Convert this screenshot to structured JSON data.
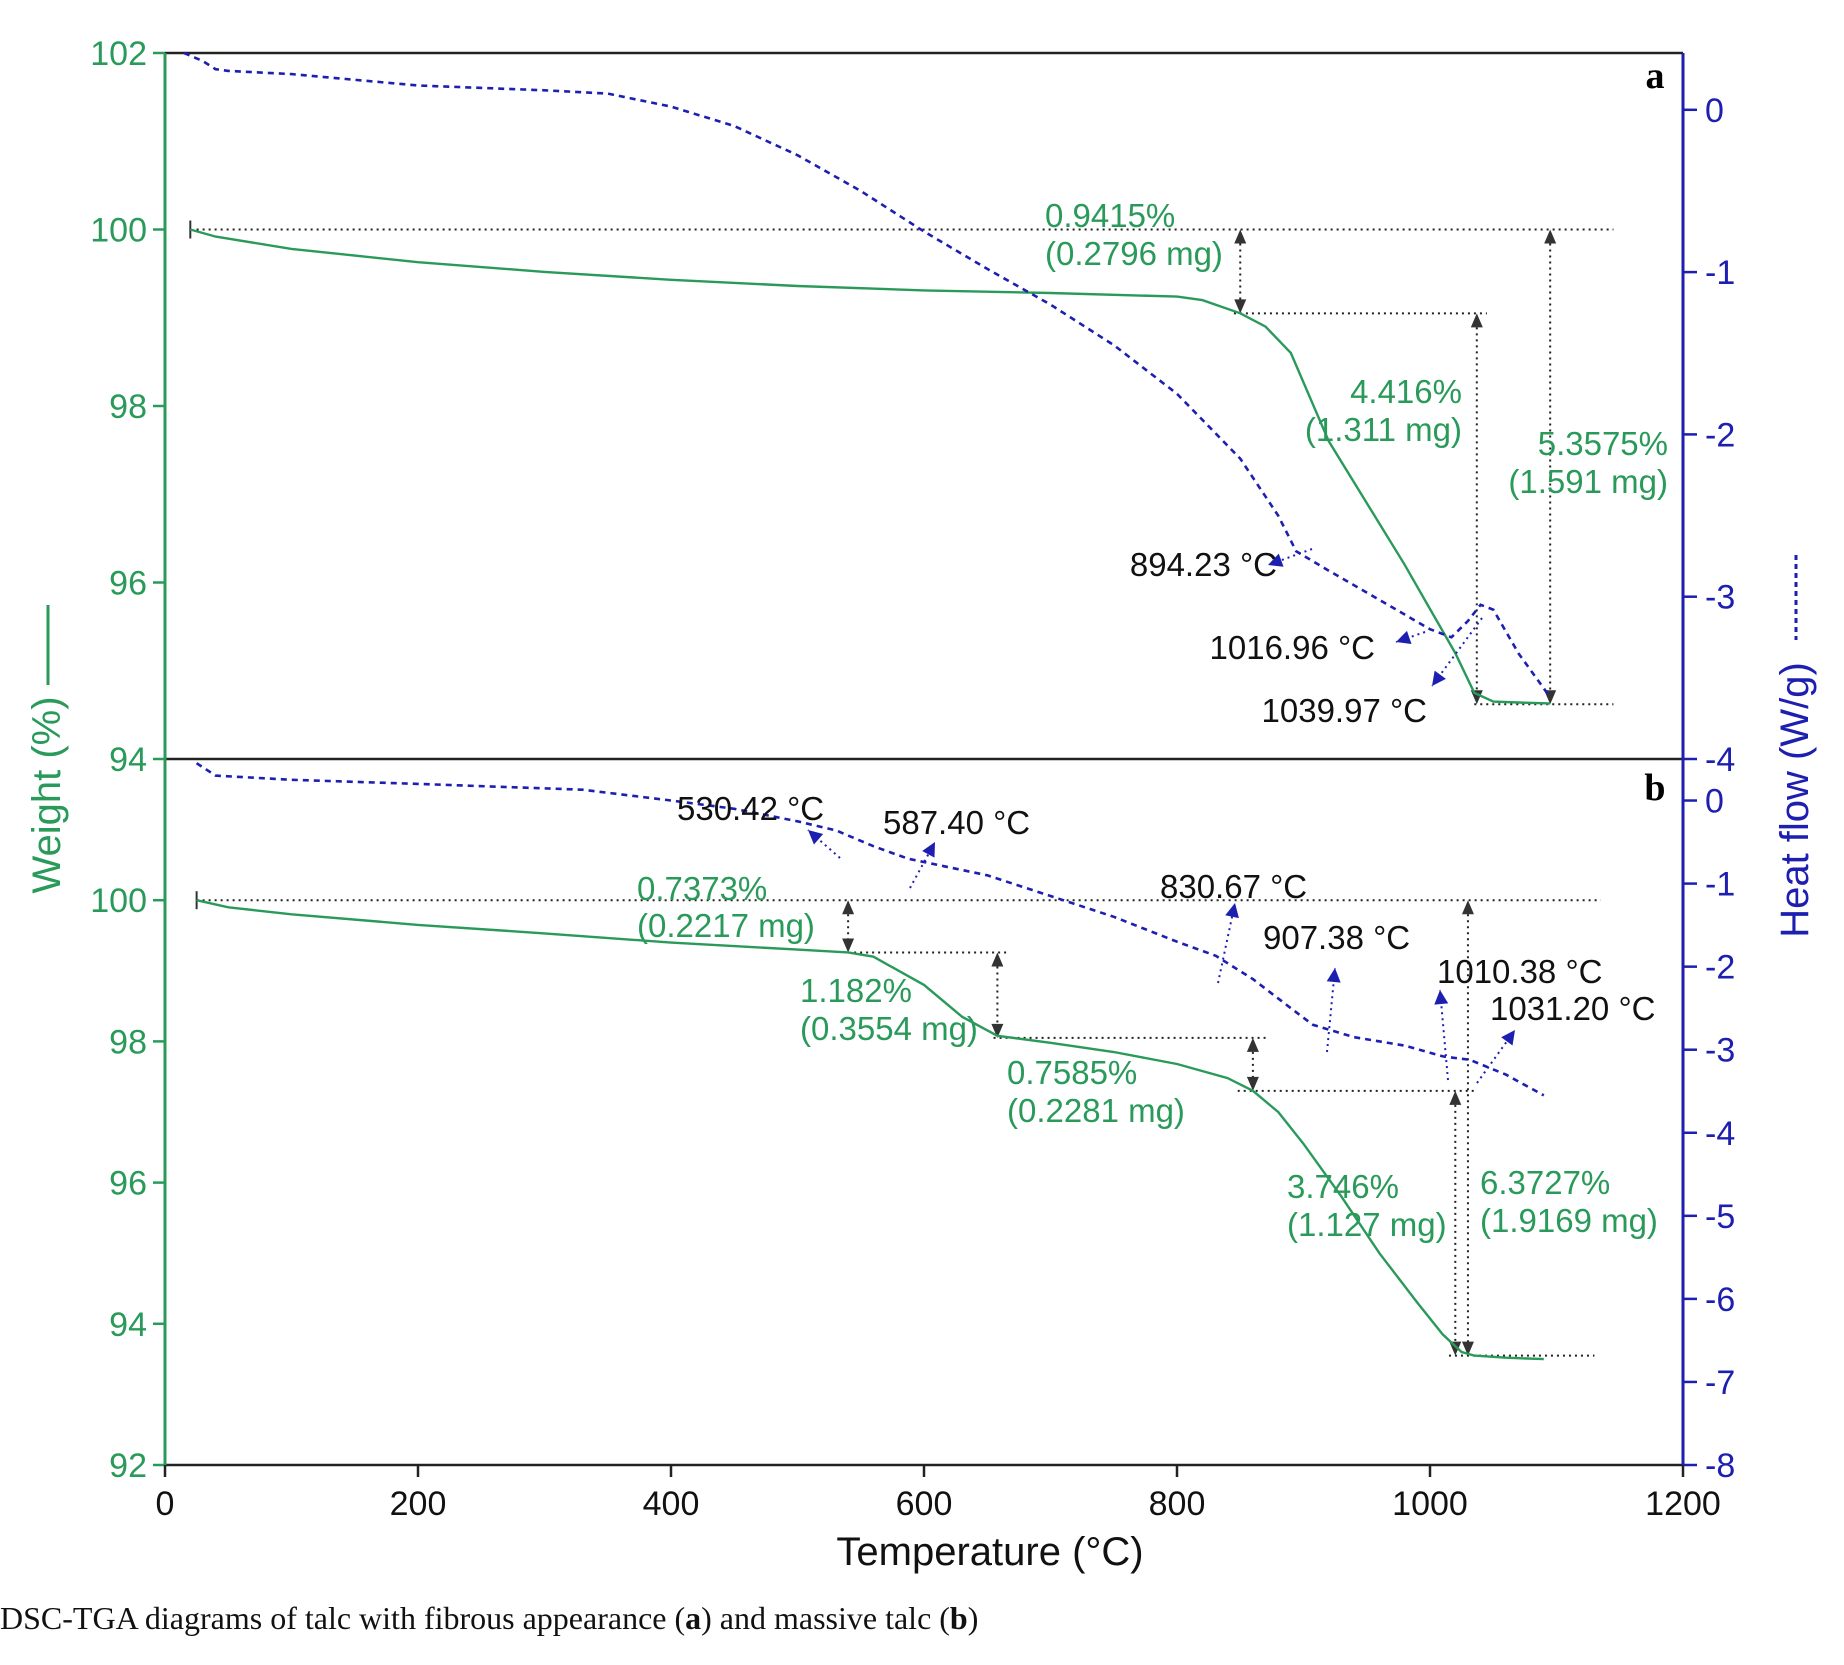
{
  "chart_data": [
    {
      "type": "line",
      "panel_label": "a",
      "x": {
        "label": "Temperature (°C)",
        "ticks": [
          "0",
          "200",
          "400",
          "600",
          "800",
          "1000",
          "1200"
        ],
        "lim": [
          0,
          1200
        ]
      },
      "y_left": {
        "label": "Weight (%)",
        "ticks": [
          "94",
          "96",
          "98",
          "100",
          "102"
        ],
        "lim": [
          94,
          102
        ]
      },
      "y_right": {
        "label": "Heat flow (W/g)",
        "ticks": [
          "-4",
          "-3",
          "-2",
          "-1",
          "0"
        ],
        "lim": [
          -4,
          0.35
        ]
      },
      "series": [
        {
          "axis": "left",
          "style": "solid",
          "color": "#2a9a5a",
          "points": [
            [
              20,
              100
            ],
            [
              40,
              99.92
            ],
            [
              100,
              99.78
            ],
            [
              200,
              99.63
            ],
            [
              300,
              99.52
            ],
            [
              400,
              99.43
            ],
            [
              500,
              99.36
            ],
            [
              600,
              99.31
            ],
            [
              700,
              99.28
            ],
            [
              800,
              99.24
            ],
            [
              820,
              99.2
            ],
            [
              850,
              99.05
            ],
            [
              870,
              98.9
            ],
            [
              890,
              98.6
            ],
            [
              920,
              97.6
            ],
            [
              950,
              96.9
            ],
            [
              980,
              96.2
            ],
            [
              1000,
              95.7
            ],
            [
              1020,
              95.2
            ],
            [
              1035,
              94.75
            ],
            [
              1050,
              94.65
            ],
            [
              1070,
              94.64
            ],
            [
              1095,
              94.63
            ]
          ]
        },
        {
          "axis": "right",
          "style": "dashed",
          "color": "#1d1fb0",
          "points": [
            [
              15,
              0.35
            ],
            [
              30,
              0.3
            ],
            [
              40,
              0.25
            ],
            [
              50,
              0.24
            ],
            [
              100,
              0.22
            ],
            [
              200,
              0.15
            ],
            [
              300,
              0.12
            ],
            [
              350,
              0.1
            ],
            [
              400,
              0.02
            ],
            [
              450,
              -0.1
            ],
            [
              500,
              -0.28
            ],
            [
              550,
              -0.5
            ],
            [
              600,
              -0.75
            ],
            [
              650,
              -0.98
            ],
            [
              700,
              -1.2
            ],
            [
              750,
              -1.45
            ],
            [
              800,
              -1.75
            ],
            [
              850,
              -2.15
            ],
            [
              880,
              -2.5
            ],
            [
              894.23,
              -2.72
            ],
            [
              920,
              -2.84
            ],
            [
              960,
              -3.02
            ],
            [
              1000,
              -3.2
            ],
            [
              1016.96,
              -3.25
            ],
            [
              1030,
              -3.15
            ],
            [
              1040,
              -3.05
            ],
            [
              1050,
              -3.08
            ],
            [
              1070,
              -3.35
            ],
            [
              1095,
              -3.62
            ]
          ]
        }
      ],
      "annotations": [
        {
          "text": [
            "0.9415%",
            "(0.2796 mg)"
          ],
          "color": "green"
        },
        {
          "text": [
            "4.416%",
            "(1.311 mg)"
          ],
          "color": "green"
        },
        {
          "text": [
            "5.3575%",
            "(1.591 mg)"
          ],
          "color": "green"
        },
        {
          "text": [
            "894.23 °C"
          ],
          "color": "black"
        },
        {
          "text": [
            "1016.96 °C"
          ],
          "color": "black"
        },
        {
          "text": [
            "1039.97 °C"
          ],
          "color": "black"
        }
      ]
    },
    {
      "type": "line",
      "panel_label": "b",
      "x": {
        "label": "Temperature (°C)",
        "ticks": [
          "0",
          "200",
          "400",
          "600",
          "800",
          "1000",
          "1200"
        ],
        "lim": [
          0,
          1200
        ]
      },
      "y_left": {
        "label": "Weight (%)",
        "ticks": [
          "92",
          "94",
          "96",
          "98",
          "100"
        ],
        "lim": [
          92,
          102
        ]
      },
      "y_right": {
        "label": "Heat flow (W/g)",
        "ticks": [
          "-8",
          "-7",
          "-6",
          "-5",
          "-4",
          "-3",
          "-2",
          "-1",
          "0"
        ],
        "lim": [
          -8,
          0.5
        ]
      },
      "series": [
        {
          "axis": "left",
          "style": "solid",
          "color": "#2a9a5a",
          "points": [
            [
              25,
              100
            ],
            [
              50,
              99.9
            ],
            [
              100,
              99.8
            ],
            [
              200,
              99.65
            ],
            [
              300,
              99.53
            ],
            [
              400,
              99.4
            ],
            [
              500,
              99.3
            ],
            [
              540,
              99.26
            ],
            [
              560,
              99.2
            ],
            [
              600,
              98.8
            ],
            [
              630,
              98.35
            ],
            [
              658,
              98.08
            ],
            [
              700,
              97.98
            ],
            [
              750,
              97.85
            ],
            [
              800,
              97.68
            ],
            [
              840,
              97.48
            ],
            [
              860,
              97.3
            ],
            [
              880,
              97.0
            ],
            [
              900,
              96.55
            ],
            [
              930,
              95.8
            ],
            [
              960,
              95.0
            ],
            [
              990,
              94.3
            ],
            [
              1010,
              93.85
            ],
            [
              1025,
              93.6
            ],
            [
              1035,
              93.55
            ],
            [
              1060,
              93.52
            ],
            [
              1090,
              93.5
            ]
          ]
        },
        {
          "axis": "right",
          "style": "dashed",
          "color": "#1d1fb0",
          "points": [
            [
              25,
              0.45
            ],
            [
              40,
              0.3
            ],
            [
              100,
              0.25
            ],
            [
              200,
              0.2
            ],
            [
              330,
              0.13
            ],
            [
              400,
              0.0
            ],
            [
              450,
              -0.1
            ],
            [
              500,
              -0.25
            ],
            [
              530.42,
              -0.36
            ],
            [
              560,
              -0.55
            ],
            [
              587.4,
              -0.7
            ],
            [
              650,
              -0.9
            ],
            [
              700,
              -1.15
            ],
            [
              750,
              -1.4
            ],
            [
              800,
              -1.7
            ],
            [
              830.67,
              -1.87
            ],
            [
              860,
              -2.15
            ],
            [
              890,
              -2.5
            ],
            [
              907.38,
              -2.7
            ],
            [
              940,
              -2.85
            ],
            [
              980,
              -2.95
            ],
            [
              1010.38,
              -3.08
            ],
            [
              1020,
              -3.1
            ],
            [
              1031.2,
              -3.12
            ],
            [
              1060,
              -3.3
            ],
            [
              1090,
              -3.55
            ]
          ]
        }
      ],
      "annotations": [
        {
          "text": [
            "0.7373%",
            "(0.2217 mg)"
          ],
          "color": "green"
        },
        {
          "text": [
            "1.182%",
            "(0.3554 mg)"
          ],
          "color": "green"
        },
        {
          "text": [
            "0.7585%",
            "(0.2281 mg)"
          ],
          "color": "green"
        },
        {
          "text": [
            "3.746%",
            "(1.127 mg)"
          ],
          "color": "green"
        },
        {
          "text": [
            "6.3727%",
            "(1.9169 mg)"
          ],
          "color": "green"
        },
        {
          "text": [
            "530.42 °C"
          ],
          "color": "black"
        },
        {
          "text": [
            "587.40 °C"
          ],
          "color": "black"
        },
        {
          "text": [
            "830.67 °C"
          ],
          "color": "black"
        },
        {
          "text": [
            "907.38 °C"
          ],
          "color": "black"
        },
        {
          "text": [
            "1010.38 °C"
          ],
          "color": "black"
        },
        {
          "text": [
            "1031.20 °C"
          ],
          "color": "black"
        }
      ]
    }
  ],
  "axis_labels": {
    "x": "Temperature (°C)",
    "y_left": "Weight (%)",
    "y_right": "Heat flow (W/g)"
  },
  "panel_labels": {
    "a": "a",
    "b": "b"
  },
  "caption": {
    "prefix": "DSC-TGA diagrams of talc with fibrous appearance (",
    "a": "a",
    "middle": ") and massive talc (",
    "b": "b",
    "suffix": ")"
  },
  "colors": {
    "weight": "#2a9a5a",
    "heat_flow": "#1d1fb0",
    "axes": "#222222"
  }
}
